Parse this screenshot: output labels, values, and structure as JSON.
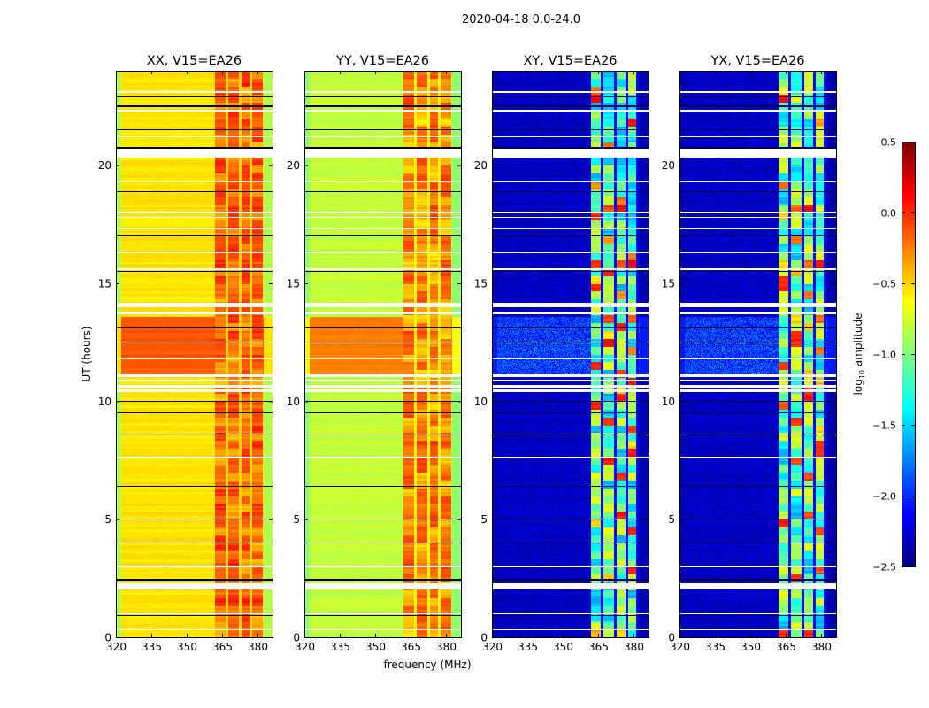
{
  "chart_data": {
    "type": "heatmap",
    "title": "2020-04-18 0.0-24.0",
    "xlabel": "frequency (MHz)",
    "ylabel": "UT (hours)",
    "xlim": [
      320,
      386
    ],
    "ylim": [
      0,
      24
    ],
    "xticks": [
      320,
      335,
      350,
      365,
      380
    ],
    "yticks": [
      0,
      5,
      10,
      15,
      20
    ],
    "colormap": "jet",
    "colorbar": {
      "label_main": "log",
      "label_sub": "10",
      "label_rest": " amplitude",
      "range": [
        -2.5,
        0.5
      ],
      "ticks": [
        "0.5",
        "0.0",
        "−0.5",
        "−1.0",
        "−1.5",
        "−2.0",
        "−2.5"
      ],
      "tick_values": [
        0.5,
        0.0,
        -0.5,
        -1.0,
        -1.5,
        -2.0,
        -2.5
      ]
    },
    "rfi_band_mhz": [
      362,
      382
    ],
    "flagged_hours": [
      [
        20.35,
        20.7
      ],
      [
        2.05,
        2.3
      ],
      [
        22.3,
        22.36
      ],
      [
        21.2,
        21.25
      ],
      [
        18.0,
        18.05
      ],
      [
        15.6,
        15.65
      ],
      [
        14.0,
        14.2
      ],
      [
        13.7,
        13.8
      ],
      [
        10.4,
        10.5
      ],
      [
        10.6,
        10.7
      ],
      [
        10.85,
        10.95
      ],
      [
        11.05,
        11.15
      ],
      [
        11.8,
        11.85
      ],
      [
        12.5,
        12.55
      ],
      [
        8.55,
        8.6
      ],
      [
        7.6,
        7.65
      ],
      [
        19.3,
        19.34
      ],
      [
        17.3,
        17.34
      ],
      [
        16.3,
        16.34
      ],
      [
        3.0,
        3.04
      ],
      [
        1.0,
        1.04
      ],
      [
        0.3,
        0.34
      ],
      [
        23.1,
        23.14
      ],
      [
        17.8,
        17.84
      ]
    ],
    "zero_hours": [
      [
        2.38,
        2.5
      ],
      [
        20.7,
        20.8
      ],
      [
        22.5,
        22.56
      ],
      [
        4.0,
        4.03
      ],
      [
        5.0,
        5.03
      ],
      [
        0.9,
        0.95
      ],
      [
        9.5,
        9.53
      ],
      [
        10.0,
        10.03
      ],
      [
        13.1,
        13.15
      ],
      [
        17.0,
        17.03
      ],
      [
        15.5,
        15.53
      ],
      [
        18.9,
        18.93
      ],
      [
        21.5,
        21.53
      ],
      [
        22.9,
        22.93
      ],
      [
        6.4,
        6.43
      ]
    ],
    "panels": [
      {
        "title": "XX, V15=EA26",
        "background": -0.55,
        "edge": -0.85,
        "rfi": -0.2,
        "bright_hours": [
          11.1,
          13.6
        ],
        "bright_background": -0.12,
        "channel_gaps_mhz": [
          367,
          372.5,
          377
        ],
        "gap_level": -0.5
      },
      {
        "title": "YY, V15=EA26",
        "background": -0.8,
        "edge": -0.95,
        "rfi": -0.3,
        "bright_hours": [
          11.1,
          13.6
        ],
        "bright_background": -0.25,
        "channel_gaps_mhz": [
          367,
          372.5,
          377
        ],
        "gap_level": -0.6
      },
      {
        "title": "XY, V15=EA26",
        "background": -2.3,
        "edge": -2.35,
        "rfi": -1.15,
        "bright_hours": [
          11.1,
          13.6
        ],
        "bright_background": -1.95,
        "channel_gaps_mhz": [
          366.5,
          372,
          377,
          381.5
        ],
        "gap_level": -2.1
      },
      {
        "title": "YX, V15=EA26",
        "background": -2.3,
        "edge": -2.35,
        "rfi": -1.15,
        "bright_hours": [
          11.1,
          13.6
        ],
        "bright_background": -1.95,
        "channel_gaps_mhz": [
          366.5,
          372,
          377,
          381.5
        ],
        "gap_level": -2.1
      }
    ]
  }
}
